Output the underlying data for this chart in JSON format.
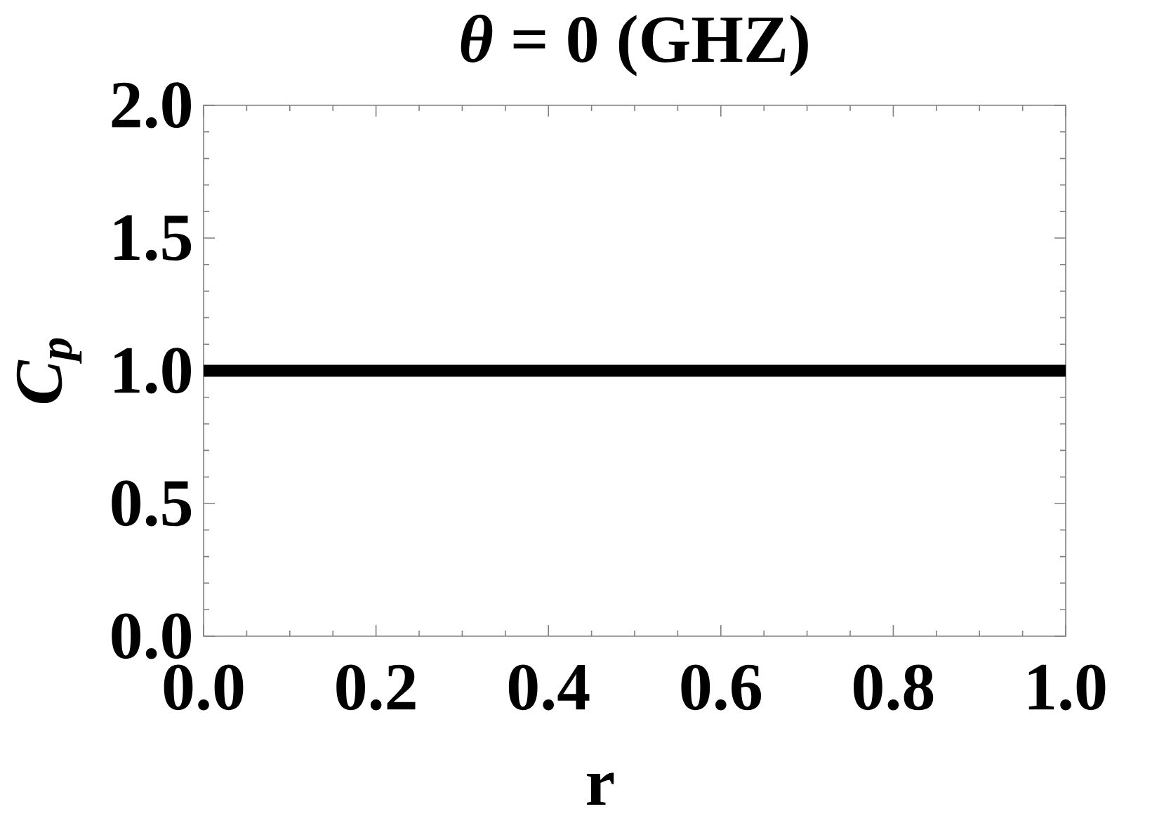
{
  "chart_data": {
    "type": "line",
    "title": "*θ* = 0 (GHZ)",
    "xlabel": "r",
    "ylabel": "C$_{p}$",
    "x": [
      0,
      1
    ],
    "series": [
      {
        "color": "#000000",
        "values": [
          1,
          1
        ]
      }
    ],
    "xlim": [
      0,
      1
    ],
    "ylim": [
      0,
      2
    ],
    "xticks": [
      {
        "value": 0,
        "label": "0.0"
      },
      {
        "value": 0.05,
        "label": null
      },
      {
        "value": 0.1,
        "label": null
      },
      {
        "value": 0.15,
        "label": null
      },
      0.2,
      {
        "value": 0.25,
        "label": null
      },
      {
        "value": 0.3,
        "label": null
      },
      {
        "value": 0.35,
        "label": null
      },
      0.4,
      {
        "value": 0.45,
        "label": null
      },
      {
        "value": 0.5,
        "label": null
      },
      {
        "value": 0.55,
        "label": null
      },
      0.6,
      {
        "value": 0.65,
        "label": null
      },
      {
        "value": 0.7,
        "label": null
      },
      {
        "value": 0.75,
        "label": null
      },
      0.8,
      {
        "value": 0.85,
        "label": null
      },
      {
        "value": 0.9,
        "label": null
      },
      {
        "value": 0.95,
        "label": null
      },
      {
        "value": 1,
        "label": "1.0"
      }
    ],
    "yticks": [
      {
        "value": 0,
        "label": "0.0"
      },
      {
        "value": 0.1,
        "label": null
      },
      {
        "value": 0.2,
        "label": null
      },
      {
        "value": 0.3,
        "label": null
      },
      {
        "value": 0.4,
        "label": null
      },
      0.5,
      {
        "value": 0.6,
        "label": null
      },
      {
        "value": 0.7,
        "label": null
      },
      {
        "value": 0.8,
        "label": null
      },
      {
        "value": 0.9,
        "label": null
      },
      {
        "value": 1,
        "label": "1.0"
      },
      {
        "value": 1.1,
        "label": null
      },
      {
        "value": 1.2,
        "label": null
      },
      {
        "value": 1.3,
        "label": null
      },
      {
        "value": 1.4,
        "label": null
      },
      1.5,
      {
        "value": 1.6,
        "label": null
      },
      {
        "value": 1.7,
        "label": null
      },
      {
        "value": 1.8,
        "label": null
      },
      {
        "value": 1.9,
        "label": null
      },
      {
        "value": 2,
        "label": "2.0"
      }
    ],
    "marker": "none",
    "line_style": "solid"
  }
}
